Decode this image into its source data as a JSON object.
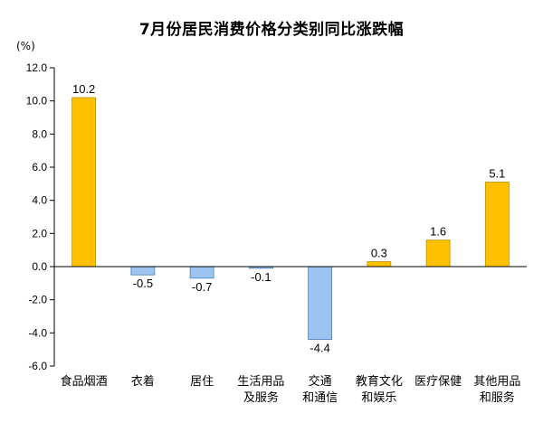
{
  "chart_data": {
    "type": "bar",
    "title": "7月份居民消费价格分类别同比涨跌幅",
    "ylabel": "(%)",
    "xlabel": "",
    "ylim": [
      -6.0,
      12.0
    ],
    "yticks": [
      "12.0",
      "10.0",
      "8.0",
      "6.0",
      "4.0",
      "2.0",
      "0.0",
      "-2.0",
      "-4.0",
      "-6.0"
    ],
    "categories": [
      [
        "食品烟酒"
      ],
      [
        "衣着"
      ],
      [
        "居住"
      ],
      [
        "生活用品",
        "及服务"
      ],
      [
        "交通",
        "和通信"
      ],
      [
        "教育文化",
        "和娱乐"
      ],
      [
        "医疗保健"
      ],
      [
        "其他用品",
        "和服务"
      ]
    ],
    "values": [
      10.2,
      -0.5,
      -0.7,
      -0.1,
      -4.4,
      0.3,
      1.6,
      5.1
    ],
    "value_labels": [
      "10.2",
      "-0.5",
      "-0.7",
      "-0.1",
      "-4.4",
      "0.3",
      "1.6",
      "5.1"
    ],
    "grid": false,
    "colors": {
      "positive": "#FFC000",
      "positive_stroke": "#C09000",
      "negative": "#9DC3F0",
      "negative_stroke": "#4A7EBB",
      "axis": "#000000"
    }
  }
}
